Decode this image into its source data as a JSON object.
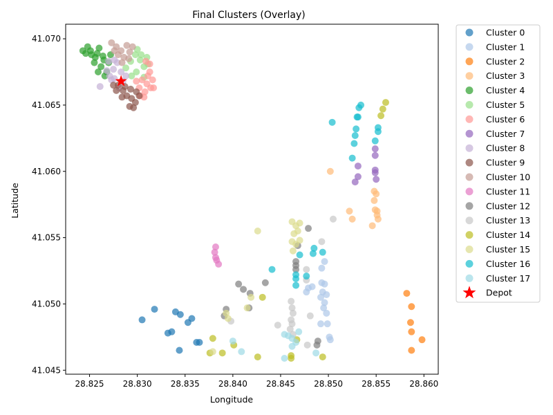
{
  "chart_data": {
    "type": "scatter",
    "title": "Final Clusters (Overlay)",
    "xlabel": "Longitude",
    "ylabel": "Latitude",
    "xlim": [
      28.8225,
      28.8615
    ],
    "ylim": [
      41.0447,
      41.0711
    ],
    "xticks": [
      28.825,
      28.83,
      28.835,
      28.84,
      28.845,
      28.85,
      28.855,
      28.86
    ],
    "yticks": [
      41.045,
      41.05,
      41.055,
      41.06,
      41.065,
      41.07
    ],
    "xtick_labels": [
      "28.825",
      "28.830",
      "28.835",
      "28.840",
      "28.845",
      "28.850",
      "28.855",
      "28.860"
    ],
    "ytick_labels": [
      "41.045",
      "41.050",
      "41.055",
      "41.060",
      "41.065",
      "41.070"
    ],
    "grid": false,
    "legend_position": "outside-right",
    "series": [
      {
        "name": "Cluster 0",
        "color": "#1f77b4",
        "points": [
          [
            28.8305,
            41.0488
          ],
          [
            28.8318,
            41.0496
          ],
          [
            28.8332,
            41.0478
          ],
          [
            28.8336,
            41.0479
          ],
          [
            28.834,
            41.0494
          ],
          [
            28.8345,
            41.0492
          ],
          [
            28.8344,
            41.0465
          ],
          [
            28.8353,
            41.0486
          ],
          [
            28.8357,
            41.0489
          ],
          [
            28.8362,
            41.0471
          ],
          [
            28.8365,
            41.0471
          ]
        ]
      },
      {
        "name": "Cluster 1",
        "color": "#aec7e8",
        "points": [
          [
            28.8477,
            41.0509
          ],
          [
            28.8479,
            41.0512
          ],
          [
            28.8483,
            41.0513
          ],
          [
            28.8493,
            41.0516
          ],
          [
            28.8496,
            41.0515
          ],
          [
            28.8494,
            41.0509
          ],
          [
            28.8498,
            41.0507
          ],
          [
            28.8492,
            41.0505
          ],
          [
            28.8496,
            41.0501
          ],
          [
            28.8495,
            41.0497
          ],
          [
            28.8498,
            41.0493
          ],
          [
            28.8492,
            41.0485
          ],
          [
            28.8499,
            41.0485
          ],
          [
            28.8501,
            41.0475
          ],
          [
            28.8502,
            41.0473
          ],
          [
            28.8493,
            41.0527
          ],
          [
            28.8496,
            41.0532
          ]
        ]
      },
      {
        "name": "Cluster 2",
        "color": "#ff7f0e",
        "points": [
          [
            28.8582,
            41.0508
          ],
          [
            28.8587,
            41.0498
          ],
          [
            28.8586,
            41.0486
          ],
          [
            28.8587,
            41.0479
          ],
          [
            28.8598,
            41.0473
          ],
          [
            28.8587,
            41.0465
          ]
        ]
      },
      {
        "name": "Cluster 3",
        "color": "#ffbb78",
        "points": [
          [
            28.8502,
            41.06
          ],
          [
            28.8548,
            41.0585
          ],
          [
            28.855,
            41.0583
          ],
          [
            28.8548,
            41.0578
          ],
          [
            28.8549,
            41.0571
          ],
          [
            28.8551,
            41.057
          ],
          [
            28.8551,
            41.0567
          ],
          [
            28.8552,
            41.0564
          ],
          [
            28.8546,
            41.0559
          ],
          [
            28.8522,
            41.057
          ],
          [
            28.8525,
            41.0564
          ]
        ]
      },
      {
        "name": "Cluster 4",
        "color": "#2ca02c",
        "points": [
          [
            28.8243,
            41.0691
          ],
          [
            28.8248,
            41.0694
          ],
          [
            28.8252,
            41.0688
          ],
          [
            28.8256,
            41.0686
          ],
          [
            28.826,
            41.0693
          ],
          [
            28.8255,
            41.0682
          ],
          [
            28.8262,
            41.0679
          ],
          [
            28.8265,
            41.0684
          ],
          [
            28.8258,
            41.0689
          ],
          [
            28.8268,
            41.0675
          ],
          [
            28.827,
            41.0682
          ],
          [
            28.8264,
            41.0687
          ],
          [
            28.8251,
            41.0691
          ],
          [
            28.8246,
            41.0689
          ],
          [
            28.8259,
            41.0675
          ],
          [
            28.8266,
            41.0672
          ],
          [
            28.8272,
            41.0688
          ]
        ]
      },
      {
        "name": "Cluster 5",
        "color": "#98df8a",
        "points": [
          [
            28.8293,
            41.0683
          ],
          [
            28.8298,
            41.0688
          ],
          [
            28.8303,
            41.0684
          ],
          [
            28.8307,
            41.0679
          ],
          [
            28.8299,
            41.0675
          ],
          [
            28.8294,
            41.0672
          ],
          [
            28.8304,
            41.0688
          ],
          [
            28.831,
            41.0686
          ],
          [
            28.8288,
            41.0678
          ],
          [
            28.83,
            41.0692
          ],
          [
            28.8311,
            41.0681
          ],
          [
            28.8307,
            41.0671
          ]
        ]
      },
      {
        "name": "Cluster 6",
        "color": "#ff9896",
        "points": [
          [
            28.8305,
            41.0669
          ],
          [
            28.831,
            41.0666
          ],
          [
            28.8314,
            41.0663
          ],
          [
            28.8308,
            41.066
          ],
          [
            28.8302,
            41.0663
          ],
          [
            28.8311,
            41.0672
          ],
          [
            28.8316,
            41.0669
          ],
          [
            28.8303,
            41.0657
          ],
          [
            28.8309,
            41.0683
          ],
          [
            28.8313,
            41.0681
          ],
          [
            28.8313,
            41.0675
          ],
          [
            28.8317,
            41.0663
          ],
          [
            28.8299,
            41.0668
          ],
          [
            28.8307,
            41.0656
          ]
        ]
      },
      {
        "name": "Cluster 7",
        "color": "#9467bd",
        "points": [
          [
            28.8549,
            41.0617
          ],
          [
            28.8549,
            41.0612
          ],
          [
            28.8531,
            41.0604
          ],
          [
            28.8549,
            41.0601
          ],
          [
            28.8549,
            41.0599
          ],
          [
            28.855,
            41.0594
          ],
          [
            28.8531,
            41.0596
          ],
          [
            28.8528,
            41.0592
          ]
        ]
      },
      {
        "name": "Cluster 8",
        "color": "#c5b0d5",
        "points": [
          [
            28.8261,
            41.0664
          ],
          [
            28.8271,
            41.0672
          ],
          [
            28.8275,
            41.0677
          ],
          [
            28.8279,
            41.0682
          ],
          [
            28.8283,
            41.0675
          ],
          [
            28.8276,
            41.067
          ],
          [
            28.8268,
            41.0676
          ],
          [
            28.8273,
            41.0669
          ],
          [
            28.8285,
            41.0668
          ],
          [
            28.8281,
            41.0663
          ],
          [
            28.8288,
            41.0672
          ],
          [
            28.827,
            41.0683
          ],
          [
            28.8276,
            41.0684
          ]
        ]
      },
      {
        "name": "Cluster 9",
        "color": "#8c564b",
        "points": [
          [
            28.828,
            41.0665
          ],
          [
            28.8285,
            41.0661
          ],
          [
            28.8289,
            41.0657
          ],
          [
            28.8294,
            41.0655
          ],
          [
            28.8298,
            41.0652
          ],
          [
            28.8292,
            41.0649
          ],
          [
            28.8296,
            41.0648
          ],
          [
            28.8287,
            41.0664
          ],
          [
            28.8293,
            41.0662
          ],
          [
            28.8299,
            41.066
          ],
          [
            28.8302,
            41.0657
          ],
          [
            28.8284,
            41.0656
          ],
          [
            28.8278,
            41.0661
          ],
          [
            28.8275,
            41.0665
          ]
        ]
      },
      {
        "name": "Cluster 10",
        "color": "#c49c94",
        "points": [
          [
            28.8273,
            41.0697
          ],
          [
            28.8278,
            41.0694
          ],
          [
            28.8283,
            41.0691
          ],
          [
            28.8289,
            41.0695
          ],
          [
            28.8292,
            41.069
          ],
          [
            28.8286,
            41.0686
          ],
          [
            28.828,
            41.0688
          ],
          [
            28.8276,
            41.0691
          ],
          [
            28.8295,
            41.0694
          ],
          [
            28.8284,
            41.0682
          ],
          [
            28.8291,
            41.0685
          ]
        ]
      },
      {
        "name": "Cluster 11",
        "color": "#e377c2",
        "points": [
          [
            28.8382,
            41.0543
          ],
          [
            28.8381,
            41.0539
          ],
          [
            28.8382,
            41.0535
          ],
          [
            28.8383,
            41.0533
          ],
          [
            28.8385,
            41.053
          ]
        ]
      },
      {
        "name": "Cluster 12",
        "color": "#7f7f7f",
        "points": [
          [
            28.8479,
            41.0557
          ],
          [
            28.8468,
            41.0544
          ],
          [
            28.8466,
            41.0532
          ],
          [
            28.8466,
            41.0529
          ],
          [
            28.8466,
            41.0526
          ],
          [
            28.8434,
            41.0516
          ],
          [
            28.8406,
            41.0515
          ],
          [
            28.8411,
            41.0511
          ],
          [
            28.8418,
            41.0508
          ],
          [
            28.8417,
            41.0497
          ],
          [
            28.8393,
            41.0496
          ],
          [
            28.8391,
            41.0491
          ],
          [
            28.8489,
            41.0472
          ],
          [
            28.8488,
            41.0469
          ]
        ]
      },
      {
        "name": "Cluster 13",
        "color": "#c7c7c7",
        "points": [
          [
            28.8505,
            41.0564
          ],
          [
            28.8493,
            41.0547
          ],
          [
            28.8477,
            41.0526
          ],
          [
            28.8477,
            41.0518
          ],
          [
            28.8461,
            41.0502
          ],
          [
            28.8462,
            41.0497
          ],
          [
            28.8463,
            41.0493
          ],
          [
            28.8461,
            41.0488
          ],
          [
            28.8462,
            41.0485
          ],
          [
            28.846,
            41.0481
          ],
          [
            28.8463,
            41.0477
          ],
          [
            28.8447,
            41.0484
          ],
          [
            28.8398,
            41.0487
          ],
          [
            28.8481,
            41.0491
          ],
          [
            28.8478,
            41.0469
          ]
        ]
      },
      {
        "name": "Cluster 14",
        "color": "#bcbd22",
        "points": [
          [
            28.856,
            41.0652
          ],
          [
            28.8557,
            41.0647
          ],
          [
            28.8555,
            41.0642
          ],
          [
            28.8431,
            41.0505
          ],
          [
            28.8426,
            41.046
          ],
          [
            28.8461,
            41.0461
          ],
          [
            28.8461,
            41.0459
          ],
          [
            28.8494,
            41.046
          ],
          [
            28.8379,
            41.0474
          ],
          [
            28.8389,
            41.0463
          ],
          [
            28.8401,
            41.0469
          ],
          [
            28.8376,
            41.0463
          ],
          [
            28.8467,
            41.0473
          ]
        ]
      },
      {
        "name": "Cluster 15",
        "color": "#dbdb8d",
        "points": [
          [
            28.8426,
            41.0555
          ],
          [
            28.8462,
            41.0562
          ],
          [
            28.8466,
            41.0559
          ],
          [
            28.847,
            41.0561
          ],
          [
            28.8468,
            41.0555
          ],
          [
            28.8464,
            41.0553
          ],
          [
            28.8462,
            41.0547
          ],
          [
            28.8466,
            41.0545
          ],
          [
            28.847,
            41.0548
          ],
          [
            28.8463,
            41.054
          ],
          [
            28.8393,
            41.0493
          ],
          [
            28.8395,
            41.0489
          ],
          [
            28.8415,
            41.0497
          ],
          [
            28.8419,
            41.0505
          ],
          [
            28.8379,
            41.0464
          ]
        ]
      },
      {
        "name": "Cluster 16",
        "color": "#17becf",
        "points": [
          [
            28.8534,
            41.065
          ],
          [
            28.8532,
            41.0648
          ],
          [
            28.8531,
            41.0641
          ],
          [
            28.853,
            41.0641
          ],
          [
            28.8504,
            41.0637
          ],
          [
            28.8529,
            41.0632
          ],
          [
            28.8528,
            41.0627
          ],
          [
            28.8527,
            41.0621
          ],
          [
            28.8525,
            41.061
          ],
          [
            28.8552,
            41.0633
          ],
          [
            28.8552,
            41.063
          ],
          [
            28.8549,
            41.0623
          ],
          [
            28.8441,
            41.0526
          ],
          [
            28.8466,
            41.0522
          ],
          [
            28.8466,
            41.0519
          ],
          [
            28.8466,
            41.0514
          ],
          [
            28.8477,
            41.0521
          ],
          [
            28.8485,
            41.0542
          ],
          [
            28.8494,
            41.0539
          ],
          [
            28.8484,
            41.0538
          ],
          [
            28.847,
            41.0537
          ]
        ]
      },
      {
        "name": "Cluster 17",
        "color": "#9edae5",
        "points": [
          [
            28.8454,
            41.0477
          ],
          [
            28.8458,
            41.0476
          ],
          [
            28.8462,
            41.0474
          ],
          [
            28.8466,
            41.0471
          ],
          [
            28.8462,
            41.0468
          ],
          [
            28.8454,
            41.0459
          ],
          [
            28.84,
            41.0472
          ],
          [
            28.8409,
            41.0464
          ],
          [
            28.8469,
            41.0479
          ],
          [
            28.8487,
            41.0463
          ]
        ]
      }
    ],
    "depot": {
      "name": "Depot",
      "color": "#ff0000",
      "point": [
        28.8283,
        41.0668
      ]
    }
  }
}
